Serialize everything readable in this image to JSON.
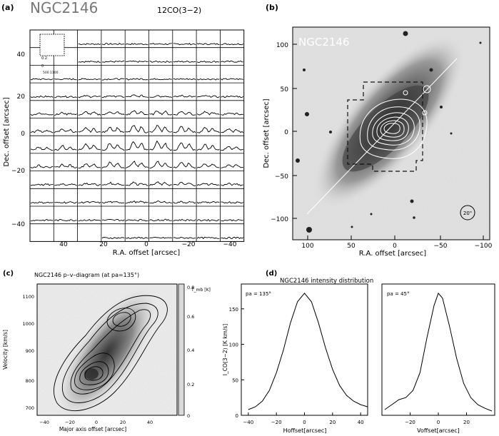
{
  "panel_a": {
    "label": "(a)",
    "object": "NGC2146",
    "line_label": "12CO(3−2)",
    "y_ticks": [
      "40",
      "20",
      "0",
      "−20",
      "−40"
    ],
    "x_ticks": [
      "40",
      "20",
      "0",
      "−20",
      "−40"
    ],
    "xlabel": "R.A. offset [arcsec]",
    "ylabel": "Dec. offset [arcsec]",
    "inset_label": "0.2\n0",
    "inset_x": "500 1100",
    "inset_unit": "v [km/s]"
  },
  "panel_b": {
    "label": "(b)",
    "object": "NGC2146",
    "beam_label": "20\"",
    "y_ticks": [
      "100",
      "50",
      "0",
      "−50",
      "−100"
    ],
    "x_ticks": [
      "100",
      "50",
      "0",
      "−50",
      "−100"
    ],
    "xlabel": "R.A. offset [arcsec]",
    "ylabel": "Dec. offset [arcsec]"
  },
  "panel_c": {
    "label": "(c)",
    "title": "NGC2146  p–v–diagram (at pa=135°)",
    "y_ticks": [
      "1100",
      "1000",
      "900",
      "800",
      "700"
    ],
    "x_ticks": [
      "−40",
      "−20",
      "0",
      "20",
      "40"
    ],
    "xlabel": "Major axis offset [arcsec]",
    "ylabel": "Velocity [km/s]",
    "colorbar_ticks": [
      "0.8",
      "0.6",
      "0.4",
      "0.2",
      "0"
    ],
    "colorbar_unit": "T_mb [K]"
  },
  "panel_d": {
    "label": "(d)",
    "title": "NGC2146  intensity distribution",
    "ylabel": "I_CO(3−2) [K km/s]",
    "y_ticks": [
      "150",
      "100",
      "50",
      "0"
    ],
    "left": {
      "pa_label": "pa = 135°",
      "x_ticks": [
        "−40",
        "−20",
        "0",
        "20",
        "40"
      ],
      "xlabel": "Hoffset[arcsec]"
    },
    "right": {
      "pa_label": "pa = 45°",
      "x_ticks": [
        "−20",
        "0",
        "20"
      ],
      "xlabel": "Voffset[arcsec]"
    }
  },
  "chart_data": [
    {
      "type": "line",
      "title": "NGC2146 intensity distribution (pa = 135°)",
      "xlabel": "Hoffset[arcsec]",
      "ylabel": "I_CO(3−2) [K km/s]",
      "xlim": [
        -45,
        45
      ],
      "ylim": [
        0,
        185
      ],
      "x": [
        -40,
        -35,
        -30,
        -25,
        -20,
        -15,
        -10,
        -5,
        0,
        5,
        10,
        15,
        20,
        25,
        30,
        35,
        40,
        45
      ],
      "y": [
        8,
        12,
        20,
        35,
        60,
        92,
        130,
        160,
        172,
        160,
        130,
        95,
        65,
        42,
        28,
        20,
        15,
        12
      ]
    },
    {
      "type": "line",
      "title": "NGC2146 intensity distribution (pa = 45°)",
      "xlabel": "Voffset[arcsec]",
      "ylabel": "I_CO(3−2) [K km/s]",
      "xlim": [
        -40,
        40
      ],
      "ylim": [
        0,
        185
      ],
      "x": [
        -38,
        -33,
        -28,
        -23,
        -18,
        -13,
        -8,
        -3,
        0,
        3,
        8,
        13,
        18,
        23,
        28,
        33,
        38
      ],
      "y": [
        8,
        15,
        22,
        25,
        35,
        60,
        110,
        155,
        172,
        165,
        125,
        80,
        45,
        25,
        15,
        10,
        6
      ]
    }
  ]
}
